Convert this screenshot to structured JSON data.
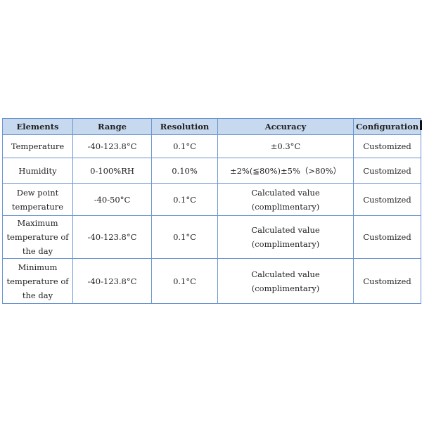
{
  "table": {
    "headers": [
      "Elements",
      "Range",
      "Resolution",
      "Accuracy",
      "Configuration"
    ],
    "rows": [
      [
        "Temperature",
        "-40-123.8°C",
        "0.1°C",
        "±0.3°C",
        "Customized"
      ],
      [
        "Humidity",
        "0-100%RH",
        "0.10%",
        "±2%(≦80%)±5%（>80%）",
        "Customized"
      ],
      [
        "Dew point temperature",
        "-40-50°C",
        "0.1°C",
        "Calculated value (complimentary)",
        "Customized"
      ],
      [
        "Maximum temperature of the day",
        "-40-123.8°C",
        "0.1°C",
        "Calculated value (complimentary)",
        "Customized"
      ],
      [
        "Minimum temperature of the day",
        "-40-123.8°C",
        "0.1°C",
        "Calculated value (complimentary)",
        "Customized"
      ]
    ]
  },
  "colors": {
    "header_bg": "#c7d9ef",
    "border": "#6a93cf"
  }
}
